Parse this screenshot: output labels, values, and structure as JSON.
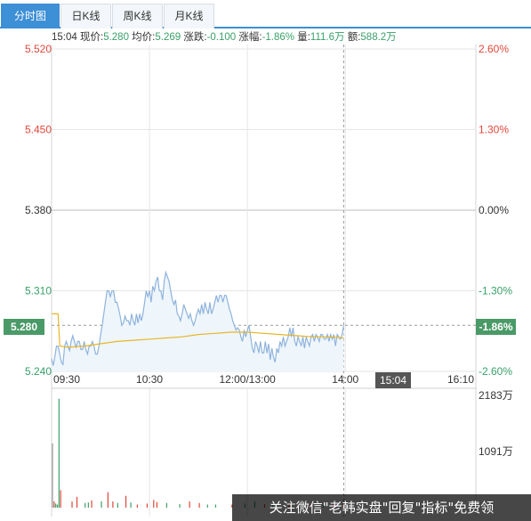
{
  "tabs": [
    {
      "label": "分时图",
      "active": true
    },
    {
      "label": "日K线",
      "active": false
    },
    {
      "label": "周K线",
      "active": false
    },
    {
      "label": "月K线",
      "active": false
    }
  ],
  "info": {
    "time": "15:04",
    "price_label": "现价:",
    "price": "5.280",
    "avg_label": "均价:",
    "avg": "5.269",
    "change_label": "涨跌:",
    "change": "-0.100",
    "pct_label": "涨幅:",
    "pct": "-1.86%",
    "vol_label": "量:",
    "vol": "111.6万",
    "amt_label": "额:",
    "amt": "588.2万"
  },
  "current_tag": {
    "price": "5.280",
    "pct": "-1.86%",
    "time": "15:04"
  },
  "watermark": "关注微信\"老韩实盘\"回复\"指标\"免费领",
  "colors": {
    "up": "#e0473a",
    "down": "#3aa06a",
    "neutral": "#333333",
    "price_line": "#8fb3dc",
    "price_fill": "#eef6fc",
    "avg_line": "#e8b52a",
    "grid": "#e6e6e6",
    "accent": "#3d8fd6"
  },
  "chart_data": {
    "type": "line",
    "y_left_ticks": [
      "5.520",
      "5.450",
      "5.380",
      "5.310",
      "5.240"
    ],
    "y_right_ticks": [
      "2.60%",
      "1.30%",
      "0.00%",
      "-1.30%",
      "-2.60%"
    ],
    "x_ticks": [
      "09:30",
      "10:30",
      "12:00/13:00",
      "14:00",
      "16:10"
    ],
    "ylim": [
      5.24,
      5.52
    ],
    "prev_close": 5.38,
    "x_range_minutes": [
      0,
      260
    ],
    "series": [
      {
        "name": "现价",
        "points": [
          [
            0,
            5.251
          ],
          [
            1,
            5.245
          ],
          [
            2,
            5.253
          ],
          [
            3,
            5.262
          ],
          [
            4,
            5.262
          ],
          [
            5,
            5.255
          ],
          [
            6,
            5.248
          ],
          [
            7,
            5.246
          ],
          [
            8,
            5.262
          ],
          [
            9,
            5.266
          ],
          [
            10,
            5.262
          ],
          [
            11,
            5.258
          ],
          [
            12,
            5.266
          ],
          [
            13,
            5.271
          ],
          [
            14,
            5.266
          ],
          [
            15,
            5.261
          ],
          [
            16,
            5.266
          ],
          [
            17,
            5.266
          ],
          [
            18,
            5.259
          ],
          [
            19,
            5.259
          ],
          [
            20,
            5.266
          ],
          [
            21,
            5.259
          ],
          [
            22,
            5.255
          ],
          [
            23,
            5.262
          ],
          [
            24,
            5.262
          ],
          [
            25,
            5.266
          ],
          [
            26,
            5.262
          ],
          [
            27,
            5.255
          ],
          [
            28,
            5.255
          ],
          [
            29,
            5.262
          ],
          [
            30,
            5.271
          ],
          [
            31,
            5.28
          ],
          [
            32,
            5.29
          ],
          [
            33,
            5.3
          ],
          [
            34,
            5.31
          ],
          [
            35,
            5.31
          ],
          [
            36,
            5.305
          ],
          [
            37,
            5.31
          ],
          [
            38,
            5.31
          ],
          [
            39,
            5.3
          ],
          [
            40,
            5.3
          ],
          [
            41,
            5.295
          ],
          [
            42,
            5.288
          ],
          [
            43,
            5.28
          ],
          [
            44,
            5.282
          ],
          [
            45,
            5.288
          ],
          [
            46,
            5.284
          ],
          [
            47,
            5.284
          ],
          [
            48,
            5.28
          ],
          [
            49,
            5.29
          ],
          [
            50,
            5.284
          ],
          [
            51,
            5.28
          ],
          [
            52,
            5.29
          ],
          [
            53,
            5.282
          ],
          [
            54,
            5.29
          ],
          [
            55,
            5.284
          ],
          [
            56,
            5.29
          ],
          [
            57,
            5.3
          ],
          [
            58,
            5.31
          ],
          [
            59,
            5.305
          ],
          [
            60,
            5.31
          ],
          [
            61,
            5.3
          ],
          [
            62,
            5.314
          ],
          [
            63,
            5.31
          ],
          [
            64,
            5.318
          ],
          [
            65,
            5.322
          ],
          [
            66,
            5.31
          ],
          [
            67,
            5.31
          ],
          [
            68,
            5.302
          ],
          [
            69,
            5.318
          ],
          [
            70,
            5.326
          ],
          [
            71,
            5.322
          ],
          [
            72,
            5.318
          ],
          [
            73,
            5.31
          ],
          [
            74,
            5.302
          ],
          [
            75,
            5.298
          ],
          [
            76,
            5.302
          ],
          [
            77,
            5.29
          ],
          [
            78,
            5.288
          ],
          [
            79,
            5.284
          ],
          [
            80,
            5.29
          ],
          [
            81,
            5.298
          ],
          [
            82,
            5.294
          ],
          [
            83,
            5.29
          ],
          [
            84,
            5.286
          ],
          [
            85,
            5.29
          ],
          [
            86,
            5.284
          ],
          [
            87,
            5.28
          ],
          [
            88,
            5.284
          ],
          [
            89,
            5.29
          ],
          [
            90,
            5.294
          ],
          [
            91,
            5.29
          ],
          [
            92,
            5.298
          ],
          [
            93,
            5.29
          ],
          [
            94,
            5.3
          ],
          [
            95,
            5.294
          ],
          [
            96,
            5.29
          ],
          [
            97,
            5.3
          ],
          [
            98,
            5.29
          ],
          [
            99,
            5.294
          ],
          [
            100,
            5.3
          ],
          [
            101,
            5.306
          ],
          [
            102,
            5.3
          ],
          [
            103,
            5.306
          ],
          [
            104,
            5.306
          ],
          [
            105,
            5.3
          ],
          [
            106,
            5.306
          ],
          [
            107,
            5.306
          ],
          [
            108,
            5.3
          ],
          [
            109,
            5.294
          ],
          [
            110,
            5.29
          ],
          [
            111,
            5.284
          ],
          [
            112,
            5.28
          ],
          [
            113,
            5.276
          ],
          [
            114,
            5.278
          ],
          [
            115,
            5.276
          ],
          [
            116,
            5.27
          ],
          [
            117,
            5.266
          ],
          [
            118,
            5.276
          ],
          [
            119,
            5.27
          ],
          [
            120,
            5.276
          ],
          [
            121,
            5.28
          ],
          [
            122,
            5.27
          ],
          [
            123,
            5.26
          ],
          [
            124,
            5.256
          ],
          [
            125,
            5.266
          ],
          [
            126,
            5.262
          ],
          [
            127,
            5.256
          ],
          [
            128,
            5.266
          ],
          [
            129,
            5.256
          ],
          [
            130,
            5.256
          ],
          [
            131,
            5.266
          ],
          [
            132,
            5.256
          ],
          [
            133,
            5.264
          ],
          [
            134,
            5.25
          ],
          [
            135,
            5.26
          ],
          [
            136,
            5.252
          ],
          [
            137,
            5.248
          ],
          [
            138,
            5.26
          ],
          [
            139,
            5.256
          ],
          [
            140,
            5.266
          ],
          [
            141,
            5.262
          ],
          [
            142,
            5.27
          ],
          [
            143,
            5.262
          ],
          [
            144,
            5.266
          ],
          [
            145,
            5.27
          ],
          [
            146,
            5.278
          ],
          [
            147,
            5.27
          ],
          [
            148,
            5.278
          ],
          [
            149,
            5.266
          ],
          [
            150,
            5.262
          ],
          [
            151,
            5.27
          ],
          [
            152,
            5.266
          ],
          [
            153,
            5.262
          ],
          [
            154,
            5.27
          ],
          [
            155,
            5.26
          ],
          [
            156,
            5.27
          ],
          [
            157,
            5.266
          ],
          [
            158,
            5.262
          ],
          [
            159,
            5.27
          ],
          [
            160,
            5.272
          ],
          [
            161,
            5.266
          ],
          [
            162,
            5.272
          ],
          [
            163,
            5.27
          ],
          [
            164,
            5.266
          ],
          [
            165,
            5.272
          ],
          [
            166,
            5.272
          ],
          [
            167,
            5.268
          ],
          [
            168,
            5.268
          ],
          [
            169,
            5.272
          ],
          [
            170,
            5.266
          ],
          [
            171,
            5.272
          ],
          [
            172,
            5.268
          ],
          [
            173,
            5.272
          ],
          [
            174,
            5.262
          ],
          [
            175,
            5.272
          ],
          [
            176,
            5.27
          ],
          [
            177,
            5.268
          ],
          [
            178,
            5.272
          ],
          [
            179,
            5.28
          ]
        ]
      },
      {
        "name": "均价",
        "points": [
          [
            0,
            5.29
          ],
          [
            1,
            5.29
          ],
          [
            2,
            5.29
          ],
          [
            3,
            5.29
          ],
          [
            4,
            5.29
          ],
          [
            5,
            5.262
          ],
          [
            10,
            5.261
          ],
          [
            20,
            5.262
          ],
          [
            30,
            5.264
          ],
          [
            40,
            5.266
          ],
          [
            50,
            5.267
          ],
          [
            60,
            5.268
          ],
          [
            70,
            5.269
          ],
          [
            80,
            5.27
          ],
          [
            90,
            5.272
          ],
          [
            100,
            5.273
          ],
          [
            110,
            5.274
          ],
          [
            120,
            5.274
          ],
          [
            130,
            5.273
          ],
          [
            140,
            5.272
          ],
          [
            150,
            5.271
          ],
          [
            160,
            5.27
          ],
          [
            170,
            5.27
          ],
          [
            179,
            5.269
          ]
        ]
      }
    ],
    "volume": {
      "y_ticks": [
        "2183万",
        "1091万"
      ],
      "ylim": [
        0,
        2183
      ],
      "bars": [
        [
          0,
          1250,
          "flat"
        ],
        [
          1,
          120,
          "up"
        ],
        [
          2,
          80,
          "down"
        ],
        [
          3,
          60,
          "down"
        ],
        [
          4,
          2120,
          "down"
        ],
        [
          5,
          340,
          "up"
        ],
        [
          12,
          120,
          "up"
        ],
        [
          15,
          210,
          "up"
        ],
        [
          20,
          90,
          "down"
        ],
        [
          22,
          100,
          "down"
        ],
        [
          24,
          140,
          "up"
        ],
        [
          30,
          120,
          "down"
        ],
        [
          34,
          300,
          "up"
        ],
        [
          37,
          120,
          "up"
        ],
        [
          40,
          90,
          "down"
        ],
        [
          45,
          230,
          "up"
        ],
        [
          48,
          100,
          "down"
        ],
        [
          52,
          60,
          "up"
        ],
        [
          58,
          80,
          "up"
        ],
        [
          62,
          150,
          "up"
        ],
        [
          64,
          110,
          "up"
        ],
        [
          70,
          90,
          "down"
        ],
        [
          78,
          70,
          "down"
        ],
        [
          84,
          120,
          "up"
        ],
        [
          90,
          90,
          "up"
        ],
        [
          95,
          60,
          "down"
        ],
        [
          100,
          60,
          "down"
        ],
        [
          110,
          60,
          "up"
        ],
        [
          118,
          80,
          "down"
        ],
        [
          124,
          120,
          "down"
        ],
        [
          130,
          70,
          "up"
        ],
        [
          135,
          50,
          "down"
        ],
        [
          145,
          60,
          "up"
        ],
        [
          152,
          40,
          "down"
        ],
        [
          158,
          70,
          "up"
        ],
        [
          166,
          50,
          "down"
        ],
        [
          172,
          70,
          "up"
        ],
        [
          178,
          80,
          "up"
        ]
      ]
    }
  }
}
